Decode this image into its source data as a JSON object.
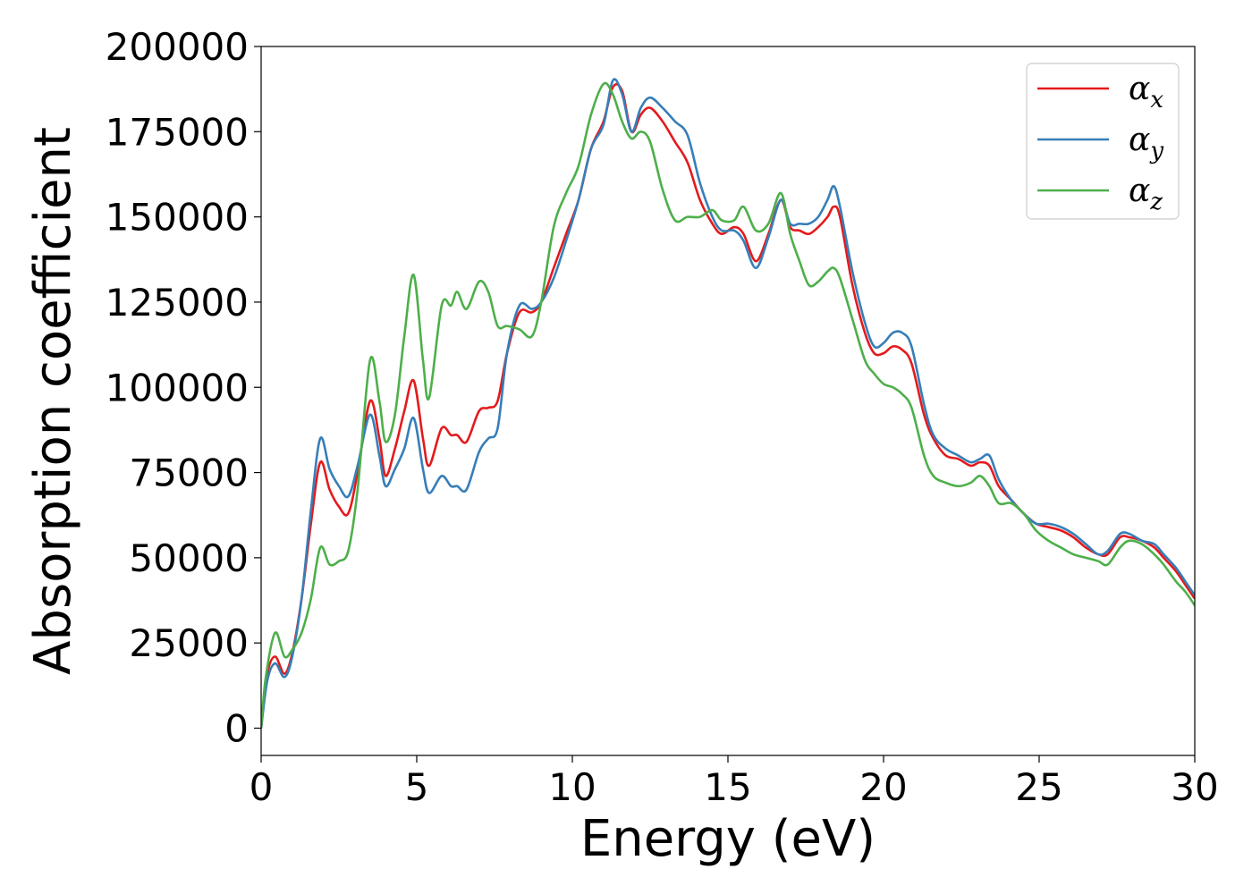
{
  "chart_data": {
    "type": "line",
    "title": "",
    "xlabel": "Energy (eV)",
    "ylabel": "Absorption coefficient",
    "xlim": [
      0,
      30
    ],
    "ylim": [
      -8000,
      200000
    ],
    "xticks": [
      0,
      5,
      10,
      15,
      20,
      25,
      30
    ],
    "xtick_labels": [
      "0",
      "5",
      "10",
      "15",
      "20",
      "25",
      "30"
    ],
    "yticks": [
      0,
      25000,
      50000,
      75000,
      100000,
      125000,
      150000,
      175000,
      200000
    ],
    "ytick_labels": [
      "0",
      "25000",
      "50000",
      "75000",
      "100000",
      "125000",
      "150000",
      "175000",
      "200000"
    ],
    "grid": false,
    "legend": {
      "position": "top-right",
      "entries": [
        {
          "base": "α",
          "sub": "x"
        },
        {
          "base": "α",
          "sub": "y"
        },
        {
          "base": "α",
          "sub": "z"
        }
      ]
    },
    "series": [
      {
        "color": "#e41a1c",
        "x": [
          0,
          0.2,
          0.45,
          0.75,
          1.0,
          1.3,
          1.6,
          1.9,
          2.2,
          2.5,
          2.8,
          3.1,
          3.5,
          3.8,
          4.0,
          4.3,
          4.6,
          4.9,
          5.2,
          5.4,
          5.8,
          6.1,
          6.3,
          6.6,
          7.0,
          7.3,
          7.6,
          7.9,
          8.3,
          8.7,
          9.0,
          9.4,
          9.8,
          10.2,
          10.6,
          11.0,
          11.3,
          11.6,
          11.9,
          12.2,
          12.5,
          12.9,
          13.3,
          13.7,
          14.1,
          14.5,
          14.8,
          15.2,
          15.5,
          15.9,
          16.3,
          16.7,
          17.0,
          17.3,
          17.6,
          17.9,
          18.2,
          18.4,
          18.6,
          19.0,
          19.4,
          19.7,
          20.0,
          20.3,
          20.6,
          20.9,
          21.3,
          21.6,
          22.0,
          22.4,
          22.8,
          23.1,
          23.4,
          23.7,
          24.1,
          24.5,
          24.9,
          25.3,
          25.7,
          26.1,
          26.5,
          26.9,
          27.2,
          27.6,
          27.9,
          28.3,
          28.7,
          29.0,
          29.4,
          29.7,
          30.0
        ],
        "values": [
          0,
          16000,
          21000,
          16000,
          22000,
          38000,
          60000,
          78000,
          70000,
          65000,
          63000,
          75000,
          96000,
          85000,
          74000,
          82000,
          93000,
          102000,
          85000,
          77000,
          88000,
          86000,
          86000,
          84000,
          93000,
          94000,
          96000,
          110000,
          122000,
          122000,
          125000,
          135000,
          145000,
          155000,
          170000,
          178000,
          188000,
          187000,
          175000,
          180000,
          182000,
          178000,
          172000,
          166000,
          155000,
          148000,
          145000,
          147000,
          145000,
          137000,
          145000,
          155000,
          147000,
          146000,
          145000,
          147000,
          150000,
          153000,
          150000,
          130000,
          116000,
          110000,
          110000,
          112000,
          111000,
          107000,
          92000,
          85000,
          80000,
          79000,
          77000,
          78000,
          77000,
          71000,
          67000,
          63000,
          60000,
          59000,
          58000,
          56000,
          53000,
          51000,
          51000,
          56000,
          56000,
          55000,
          53000,
          50000,
          46000,
          42000,
          38000
        ]
      },
      {
        "color": "#377eb8",
        "x": [
          0,
          0.2,
          0.45,
          0.75,
          1.0,
          1.3,
          1.6,
          1.9,
          2.2,
          2.5,
          2.8,
          3.1,
          3.5,
          3.8,
          4.0,
          4.3,
          4.6,
          4.9,
          5.2,
          5.4,
          5.8,
          6.1,
          6.3,
          6.6,
          7.0,
          7.3,
          7.6,
          7.9,
          8.3,
          8.7,
          9.0,
          9.4,
          9.8,
          10.2,
          10.6,
          11.0,
          11.3,
          11.6,
          11.9,
          12.2,
          12.5,
          12.9,
          13.3,
          13.7,
          14.1,
          14.5,
          14.8,
          15.2,
          15.5,
          15.9,
          16.3,
          16.7,
          17.0,
          17.3,
          17.6,
          17.9,
          18.2,
          18.4,
          18.6,
          19.0,
          19.4,
          19.7,
          20.0,
          20.3,
          20.6,
          20.9,
          21.3,
          21.6,
          22.0,
          22.4,
          22.8,
          23.1,
          23.4,
          23.7,
          24.1,
          24.5,
          24.9,
          25.3,
          25.7,
          26.1,
          26.5,
          26.9,
          27.2,
          27.6,
          27.9,
          28.3,
          28.7,
          29.0,
          29.4,
          29.7,
          30.0
        ],
        "values": [
          0,
          14000,
          19000,
          15000,
          21000,
          38000,
          64000,
          85000,
          76000,
          71000,
          68000,
          77000,
          92000,
          80000,
          71000,
          76000,
          82000,
          91000,
          76000,
          69000,
          74000,
          71000,
          71000,
          70000,
          81000,
          85000,
          88000,
          110000,
          124000,
          123000,
          125000,
          132000,
          143000,
          155000,
          170000,
          177000,
          190000,
          186000,
          175000,
          182000,
          185000,
          182000,
          178000,
          174000,
          160000,
          150000,
          146000,
          146000,
          143000,
          135000,
          144000,
          155000,
          148000,
          148000,
          148000,
          150000,
          155000,
          159000,
          153000,
          134000,
          119000,
          112000,
          113000,
          116000,
          116000,
          112000,
          95000,
          86000,
          82000,
          80000,
          78000,
          79000,
          80000,
          73000,
          67000,
          63000,
          60000,
          60000,
          59000,
          57000,
          54000,
          51000,
          52000,
          57000,
          57000,
          55000,
          54000,
          51000,
          47000,
          43000,
          39000
        ]
      },
      {
        "color": "#4daf4a",
        "x": [
          0,
          0.15,
          0.45,
          0.75,
          1.0,
          1.3,
          1.6,
          1.9,
          2.2,
          2.5,
          2.8,
          3.1,
          3.5,
          3.8,
          4.0,
          4.3,
          4.6,
          4.9,
          5.2,
          5.4,
          5.8,
          6.1,
          6.3,
          6.6,
          7.0,
          7.3,
          7.6,
          7.9,
          8.3,
          8.7,
          9.0,
          9.4,
          9.8,
          10.2,
          10.6,
          11.0,
          11.3,
          11.6,
          11.9,
          12.2,
          12.5,
          12.9,
          13.3,
          13.7,
          14.1,
          14.5,
          14.8,
          15.2,
          15.5,
          15.9,
          16.3,
          16.7,
          17.0,
          17.3,
          17.6,
          17.9,
          18.2,
          18.4,
          18.6,
          19.0,
          19.4,
          19.7,
          20.0,
          20.3,
          20.6,
          20.9,
          21.3,
          21.6,
          22.0,
          22.4,
          22.8,
          23.1,
          23.4,
          23.7,
          24.1,
          24.5,
          24.9,
          25.3,
          25.7,
          26.1,
          26.5,
          26.9,
          27.2,
          27.6,
          27.9,
          28.3,
          28.7,
          29.0,
          29.4,
          29.7,
          30.0
        ],
        "values": [
          0,
          15000,
          28000,
          21000,
          23000,
          28000,
          38000,
          53000,
          48000,
          49000,
          52000,
          70000,
          108000,
          96000,
          84000,
          92000,
          115000,
          133000,
          108000,
          97000,
          124000,
          124000,
          128000,
          123000,
          131000,
          128000,
          118000,
          118000,
          117000,
          115000,
          125000,
          147000,
          157000,
          165000,
          180000,
          189000,
          186000,
          178000,
          173000,
          175000,
          172000,
          158000,
          149000,
          150000,
          150000,
          152000,
          149000,
          149000,
          153000,
          146000,
          148000,
          157000,
          145000,
          137000,
          130000,
          131000,
          134000,
          135000,
          132000,
          120000,
          108000,
          104000,
          101000,
          100000,
          98000,
          94000,
          80000,
          74000,
          72000,
          71000,
          72000,
          74000,
          71000,
          66000,
          66000,
          63000,
          58000,
          55000,
          53000,
          51000,
          50000,
          49000,
          48000,
          53000,
          55000,
          54000,
          51000,
          48000,
          43000,
          40000,
          36000
        ]
      }
    ]
  }
}
